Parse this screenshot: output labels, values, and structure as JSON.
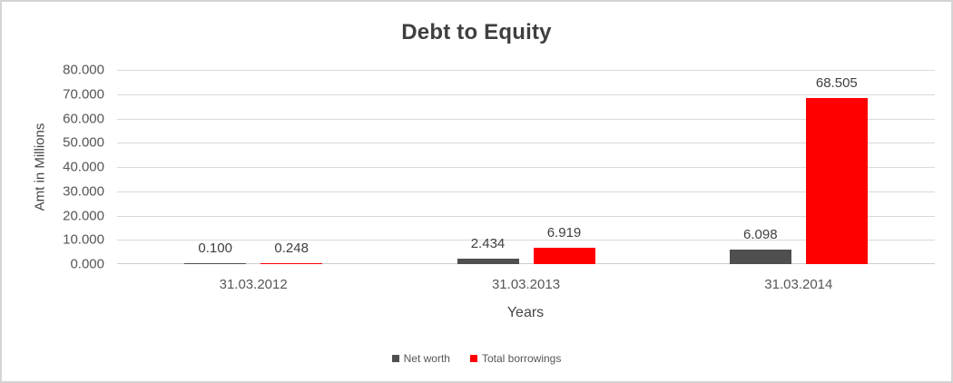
{
  "chart_data": {
    "type": "bar",
    "title": "Debt to Equity",
    "xlabel": "Years",
    "ylabel": "Amt in Millions",
    "categories": [
      "31.03.2012",
      "31.03.2013",
      "31.03.2014"
    ],
    "series": [
      {
        "name": "Net worth",
        "color": "#4f4f4f",
        "values": [
          0.1,
          2.434,
          6.098
        ]
      },
      {
        "name": "Total borrowings",
        "color": "#ff0000",
        "values": [
          0.248,
          6.919,
          68.505
        ]
      }
    ],
    "data_labels": [
      [
        "0.100",
        "2.434",
        "6.098"
      ],
      [
        "0.248",
        "6.919",
        "68.505"
      ]
    ],
    "ytick_labels": [
      "0.000",
      "10.000",
      "20.000",
      "30.000",
      "40.000",
      "50.000",
      "60.000",
      "70.000",
      "80.000"
    ],
    "ylim": [
      0,
      80
    ],
    "ytick_step": 10,
    "grid": true,
    "legend_position": "bottom",
    "gridline_color": "#d9d9d9"
  }
}
